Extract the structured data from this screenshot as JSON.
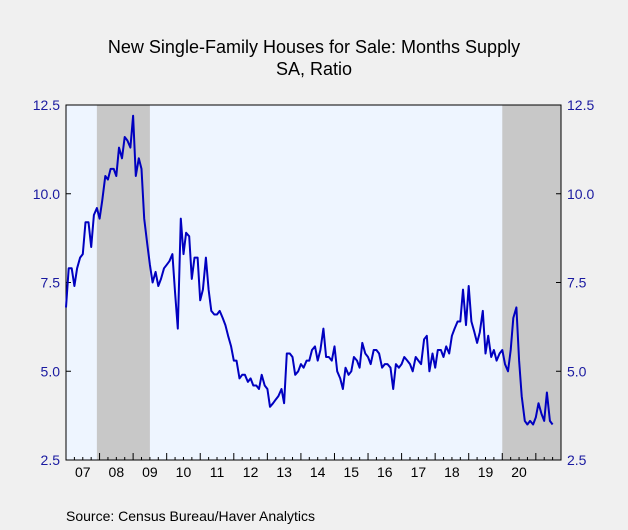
{
  "chart_data": {
    "type": "line",
    "title": "New Single-Family Houses for Sale: Months Supply",
    "subtitle": "SA, Ratio",
    "source": "Source:  Census Bureau/Haver Analytics",
    "ylim": [
      2.5,
      12.5
    ],
    "xlim": [
      2007.0,
      2021.75
    ],
    "y_ticks": [
      "2.5",
      "5.0",
      "7.5",
      "10.0",
      "12.5"
    ],
    "y_tick_values": [
      2.5,
      5.0,
      7.5,
      10.0,
      12.5
    ],
    "x_tick_labels": [
      "07",
      "08",
      "09",
      "10",
      "11",
      "12",
      "13",
      "14",
      "15",
      "16",
      "17",
      "18",
      "19",
      "20"
    ],
    "recessions": [
      [
        2007.92,
        2009.5
      ],
      [
        2020.0,
        2021.75
      ]
    ],
    "colors": {
      "line": "#0000c0",
      "plot_bg": "#eef5ff",
      "recession": "#c8c8c8",
      "axis_text": "#1a1aa0"
    },
    "series": [
      {
        "x": [
          2007.0,
          2007.08,
          2007.17,
          2007.25,
          2007.33,
          2007.42,
          2007.5,
          2007.58,
          2007.67,
          2007.75,
          2007.83,
          2007.92,
          2008.0,
          2008.08,
          2008.17,
          2008.25,
          2008.33,
          2008.42,
          2008.5,
          2008.58,
          2008.67,
          2008.75,
          2008.83,
          2008.92,
          2009.0,
          2009.08,
          2009.17,
          2009.25,
          2009.33,
          2009.42,
          2009.5,
          2009.58,
          2009.67,
          2009.75,
          2009.83,
          2009.92,
          2010.0,
          2010.08,
          2010.17,
          2010.25,
          2010.33,
          2010.42,
          2010.5,
          2010.58,
          2010.67,
          2010.75,
          2010.83,
          2010.92,
          2011.0,
          2011.08,
          2011.17,
          2011.25,
          2011.33,
          2011.42,
          2011.5,
          2011.58,
          2011.67,
          2011.75,
          2011.83,
          2011.92,
          2012.0,
          2012.08,
          2012.17,
          2012.25,
          2012.33,
          2012.42,
          2012.5,
          2012.58,
          2012.67,
          2012.75,
          2012.83,
          2012.92,
          2013.0,
          2013.08,
          2013.17,
          2013.25,
          2013.33,
          2013.42,
          2013.5,
          2013.58,
          2013.67,
          2013.75,
          2013.83,
          2013.92,
          2014.0,
          2014.08,
          2014.17,
          2014.25,
          2014.33,
          2014.42,
          2014.5,
          2014.58,
          2014.67,
          2014.75,
          2014.83,
          2014.92,
          2015.0,
          2015.08,
          2015.17,
          2015.25,
          2015.33,
          2015.42,
          2015.5,
          2015.58,
          2015.67,
          2015.75,
          2015.83,
          2015.92,
          2016.0,
          2016.08,
          2016.17,
          2016.25,
          2016.33,
          2016.42,
          2016.5,
          2016.58,
          2016.67,
          2016.75,
          2016.83,
          2016.92,
          2017.0,
          2017.08,
          2017.17,
          2017.25,
          2017.33,
          2017.42,
          2017.5,
          2017.58,
          2017.67,
          2017.75,
          2017.83,
          2017.92,
          2018.0,
          2018.08,
          2018.17,
          2018.25,
          2018.33,
          2018.42,
          2018.5,
          2018.58,
          2018.67,
          2018.75,
          2018.83,
          2018.92,
          2019.0,
          2019.08,
          2019.17,
          2019.25,
          2019.33,
          2019.42,
          2019.5,
          2019.58,
          2019.67,
          2019.75,
          2019.83,
          2019.92,
          2020.0,
          2020.08,
          2020.17,
          2020.25,
          2020.33,
          2020.42,
          2020.5,
          2020.58,
          2020.67,
          2020.75,
          2020.83,
          2020.92,
          2021.0,
          2021.08,
          2021.17,
          2021.25,
          2021.33,
          2021.42,
          2021.5
        ],
        "y": [
          6.8,
          7.9,
          7.9,
          7.4,
          7.9,
          8.2,
          8.3,
          9.2,
          9.2,
          8.5,
          9.4,
          9.6,
          9.3,
          9.8,
          10.5,
          10.4,
          10.7,
          10.7,
          10.5,
          11.3,
          11.0,
          11.6,
          11.5,
          11.3,
          12.2,
          10.5,
          11.0,
          10.7,
          9.3,
          8.6,
          8.0,
          7.5,
          7.8,
          7.4,
          7.6,
          7.9,
          8.0,
          8.1,
          8.3,
          7.2,
          6.2,
          9.3,
          8.3,
          8.9,
          8.8,
          7.6,
          8.2,
          8.2,
          7.0,
          7.3,
          8.2,
          7.3,
          6.7,
          6.6,
          6.6,
          6.7,
          6.5,
          6.3,
          6.0,
          5.7,
          5.3,
          5.3,
          4.8,
          4.9,
          4.9,
          4.7,
          4.8,
          4.6,
          4.6,
          4.5,
          4.9,
          4.6,
          4.5,
          4.0,
          4.1,
          4.2,
          4.3,
          4.5,
          4.1,
          5.5,
          5.5,
          5.4,
          4.9,
          5.0,
          5.2,
          5.1,
          5.3,
          5.3,
          5.6,
          5.7,
          5.3,
          5.6,
          6.2,
          5.4,
          5.4,
          5.3,
          5.7,
          5.0,
          4.8,
          4.5,
          5.1,
          4.9,
          5.0,
          5.4,
          5.3,
          5.1,
          5.8,
          5.5,
          5.4,
          5.2,
          5.6,
          5.6,
          5.5,
          5.1,
          5.2,
          5.2,
          5.1,
          4.5,
          5.2,
          5.1,
          5.2,
          5.4,
          5.3,
          5.2,
          5.0,
          5.4,
          5.3,
          5.2,
          5.9,
          6.0,
          5.0,
          5.5,
          5.1,
          5.6,
          5.6,
          5.4,
          5.7,
          5.5,
          6.0,
          6.2,
          6.4,
          6.4,
          7.3,
          6.3,
          7.4,
          6.4,
          6.1,
          5.8,
          6.1,
          6.7,
          5.5,
          6.0,
          5.4,
          5.6,
          5.3,
          5.5,
          5.6,
          5.2,
          5.0,
          5.6,
          6.5,
          6.8,
          5.3,
          4.3,
          3.6,
          3.5,
          3.6,
          3.5,
          3.7,
          4.1,
          3.8,
          3.6,
          4.4,
          3.6,
          3.5
        ]
      }
    ],
    "grid": false,
    "legend": "none"
  }
}
